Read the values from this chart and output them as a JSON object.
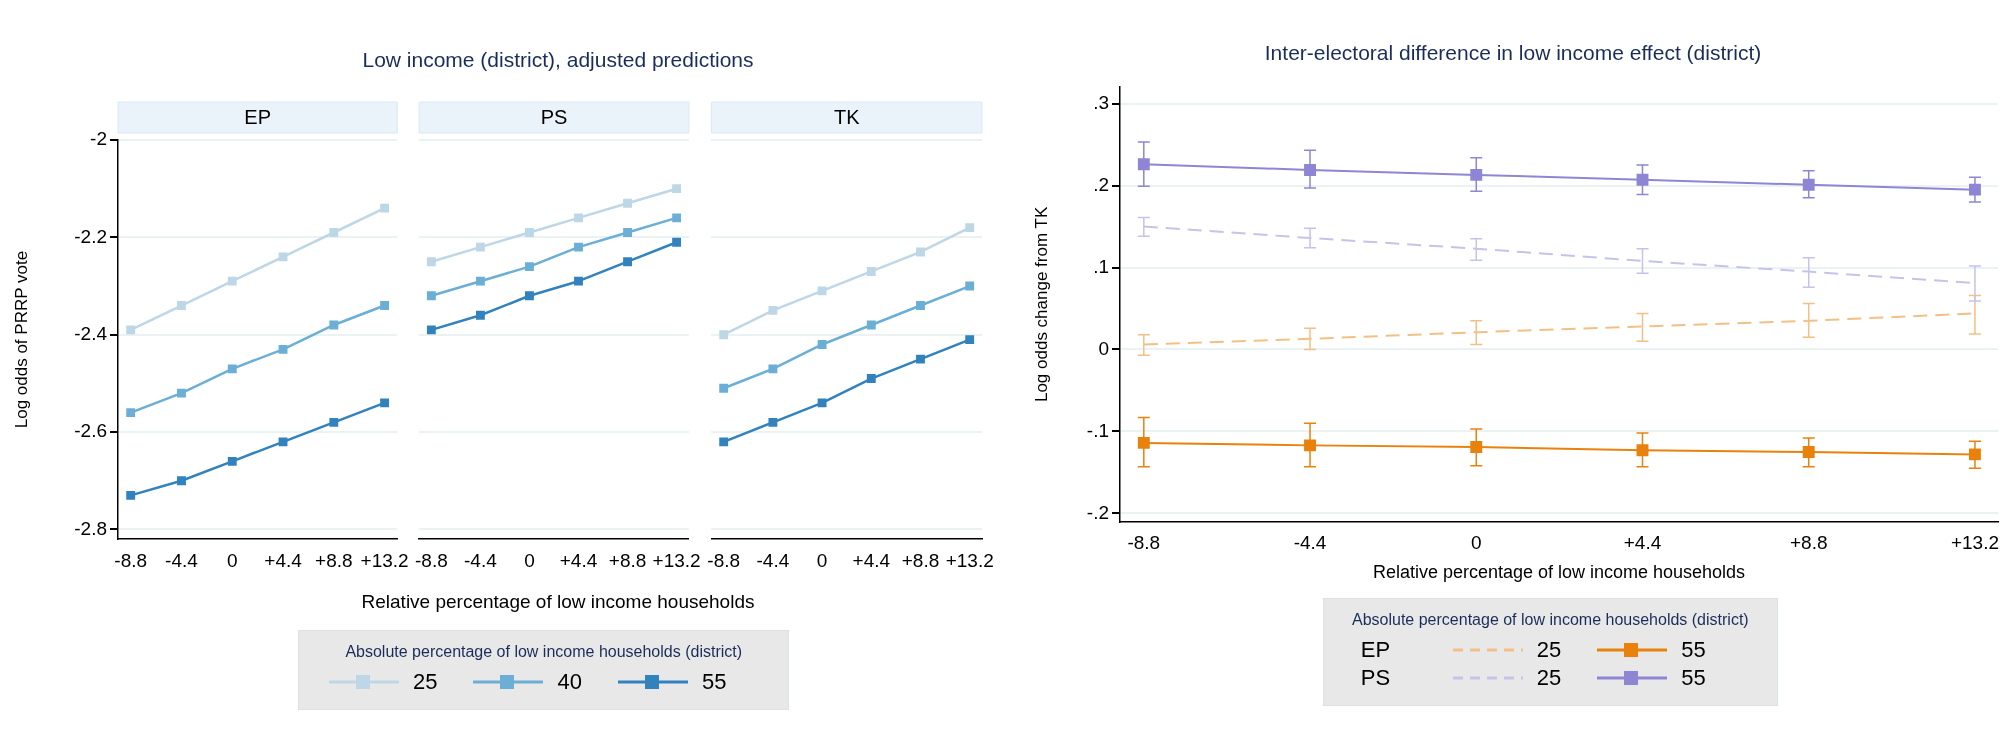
{
  "chart_data": [
    {
      "type": "other",
      "title": "Low income (district), adjusted predictions"
    },
    {
      "type": "line",
      "subtitle": "EP",
      "ylabel": "Log odds of PRRP vote",
      "legend_title": "Absolute percentage of low income households (district)",
      "legend": "bottom",
      "marker": "square",
      "grid": "y",
      "x": [
        -8.8,
        -4.4,
        0,
        4.4,
        8.8,
        13.2
      ],
      "xlim": [
        -9.9,
        14.3
      ],
      "xticks": [
        -8.8,
        -4.4,
        0,
        {
          "value": 4.4,
          "label": "+4.4"
        },
        {
          "value": 8.8,
          "label": "+8.8"
        },
        {
          "value": 13.2,
          "label": "+13.2"
        }
      ],
      "ylim": [
        -2.82,
        -2
      ],
      "yticks": [
        -2.8,
        -2.6,
        -2.4,
        -2.2,
        -2
      ],
      "series": [
        {
          "name": "25",
          "color": "#bdd7e7",
          "values": [
            -2.39,
            -2.34,
            -2.29,
            -2.24,
            -2.19,
            -2.14
          ]
        },
        {
          "name": "40",
          "color": "#6baed6",
          "values": [
            -2.56,
            -2.52,
            -2.47,
            -2.43,
            -2.38,
            -2.34
          ]
        },
        {
          "name": "55",
          "color": "#3182bd",
          "values": [
            -2.73,
            -2.7,
            -2.66,
            -2.62,
            -2.58,
            -2.54
          ]
        }
      ]
    },
    {
      "type": "line",
      "subtitle": "PS",
      "xlabel": "Relative percentage of low income households",
      "marker": "square",
      "grid": "y",
      "tick_labels": "x",
      "x": [
        -8.8,
        -4.4,
        0,
        4.4,
        8.8,
        13.2
      ],
      "xlim": [
        -9.9,
        14.3
      ],
      "xticks": [
        -8.8,
        -4.4,
        0,
        {
          "value": 4.4,
          "label": "+4.4"
        },
        {
          "value": 8.8,
          "label": "+8.8"
        },
        {
          "value": 13.2,
          "label": "+13.2"
        }
      ],
      "ylim": [
        -2.82,
        -2
      ],
      "yticks": [
        -2.8,
        -2.6,
        -2.4,
        -2.2,
        -2
      ],
      "series": [
        {
          "color": "#bdd7e7",
          "values": [
            -2.25,
            -2.22,
            -2.19,
            -2.16,
            -2.13,
            -2.1
          ]
        },
        {
          "color": "#6baed6",
          "values": [
            -2.32,
            -2.29,
            -2.26,
            -2.22,
            -2.19,
            -2.16
          ]
        },
        {
          "color": "#3182bd",
          "values": [
            -2.39,
            -2.36,
            -2.32,
            -2.29,
            -2.25,
            -2.21
          ]
        }
      ]
    },
    {
      "type": "line",
      "subtitle": "TK",
      "marker": "square",
      "grid": "y",
      "tick_labels": "x",
      "x": [
        -8.8,
        -4.4,
        0,
        4.4,
        8.8,
        13.2
      ],
      "xlim": [
        -9.9,
        14.3
      ],
      "xticks": [
        -8.8,
        -4.4,
        0,
        {
          "value": 4.4,
          "label": "+4.4"
        },
        {
          "value": 8.8,
          "label": "+8.8"
        },
        {
          "value": 13.2,
          "label": "+13.2"
        }
      ],
      "ylim": [
        -2.82,
        -2
      ],
      "yticks": [
        -2.8,
        -2.6,
        -2.4,
        -2.2,
        -2
      ],
      "series": [
        {
          "color": "#bdd7e7",
          "values": [
            -2.4,
            -2.35,
            -2.31,
            -2.27,
            -2.23,
            -2.18
          ]
        },
        {
          "color": "#6baed6",
          "values": [
            -2.51,
            -2.47,
            -2.42,
            -2.38,
            -2.34,
            -2.3
          ]
        },
        {
          "color": "#3182bd",
          "values": [
            -2.62,
            -2.58,
            -2.54,
            -2.49,
            -2.45,
            -2.41
          ]
        }
      ]
    },
    {
      "type": "line",
      "title": "Inter-electoral difference in low income effect (district)",
      "xlabel": "Relative percentage of low income households",
      "ylabel": "Log odds change from TK",
      "legend_title": "Absolute percentage of low income households (district)",
      "legend": "bottom",
      "grid": "y",
      "annotations": [
        "EP",
        "PS"
      ],
      "x": [
        -8.8,
        -4.4,
        0,
        4.4,
        8.8,
        13.2
      ],
      "xlim": [
        -9.43,
        13.81
      ],
      "xticks": [
        -8.8,
        -4.4,
        0,
        {
          "value": 4.4,
          "label": "+4.4"
        },
        {
          "value": 8.8,
          "label": "+8.8"
        },
        {
          "value": 13.2,
          "label": "+13.2"
        }
      ],
      "ylim": [
        -0.21,
        0.32
      ],
      "yticks": [
        {
          "value": -0.2,
          "label": "-.2"
        },
        {
          "value": -0.1,
          "label": "-.1"
        },
        0,
        {
          "value": 0.1,
          "label": ".1"
        },
        {
          "value": 0.2,
          "label": ".2"
        },
        {
          "value": 0.3,
          "label": ".3"
        }
      ],
      "series": [
        {
          "name": "25",
          "color": "#f2c084",
          "line_style": "dashed",
          "marker": "none",
          "values": [
            0.006,
            0.013,
            0.021,
            0.028,
            0.035,
            0.044
          ],
          "errors": [
            [
              -0.007,
              0.018
            ],
            [
              0,
              0.026
            ],
            [
              0.006,
              0.035
            ],
            [
              0.01,
              0.044
            ],
            [
              0.015,
              0.056
            ],
            [
              0.019,
              0.066
            ]
          ]
        },
        {
          "name": "55",
          "color": "#e8820c",
          "line_style": "solid",
          "marker": "square",
          "values": [
            -0.114,
            -0.117,
            -0.119,
            -0.123,
            -0.125,
            -0.128
          ],
          "errors": [
            [
              -0.143,
              -0.083
            ],
            [
              -0.143,
              -0.09
            ],
            [
              -0.142,
              -0.097
            ],
            [
              -0.143,
              -0.102
            ],
            [
              -0.143,
              -0.108
            ],
            [
              -0.145,
              -0.112
            ]
          ]
        },
        {
          "name": "25",
          "color": "#c6c2ea",
          "line_style": "dashed",
          "marker": "none",
          "values": [
            0.15,
            0.136,
            0.123,
            0.108,
            0.095,
            0.081
          ],
          "errors": [
            [
              0.138,
              0.161
            ],
            [
              0.124,
              0.148
            ],
            [
              0.109,
              0.135
            ],
            [
              0.093,
              0.123
            ],
            [
              0.076,
              0.112
            ],
            [
              0.059,
              0.102
            ]
          ]
        },
        {
          "name": "55",
          "color": "#8e86d4",
          "line_style": "solid",
          "marker": "square",
          "values": [
            0.226,
            0.219,
            0.213,
            0.207,
            0.201,
            0.195
          ],
          "errors": [
            [
              0.199,
              0.253
            ],
            [
              0.197,
              0.243
            ],
            [
              0.193,
              0.234
            ],
            [
              0.189,
              0.225
            ],
            [
              0.185,
              0.218
            ],
            [
              0.18,
              0.21
            ]
          ]
        }
      ]
    }
  ]
}
